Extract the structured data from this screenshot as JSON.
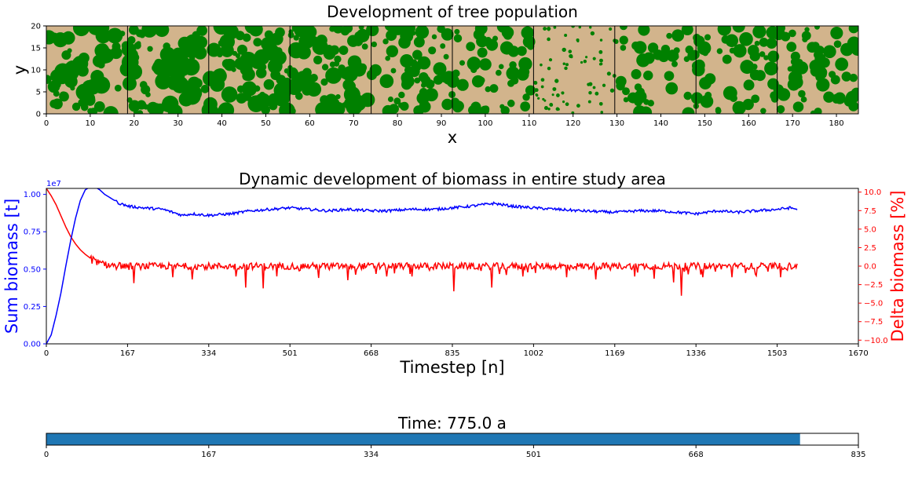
{
  "chart_data": [
    {
      "type": "scatter",
      "title": "Development of tree population",
      "xlabel": "x",
      "ylabel": "y",
      "xlim": [
        0,
        185
      ],
      "ylim": [
        0,
        20
      ],
      "xticks": [
        0,
        10,
        20,
        30,
        40,
        50,
        60,
        70,
        80,
        90,
        100,
        110,
        120,
        130,
        140,
        150,
        160,
        170,
        180
      ],
      "yticks": [
        0,
        5,
        10,
        15,
        20
      ],
      "background_color": "#d2b48c",
      "tree_color": "#008000",
      "separator_color": "#000000",
      "panel_separators_x": [
        18.5,
        37,
        55.5,
        74,
        92.5,
        111,
        129.5,
        148,
        166.5
      ],
      "panel_tree_coverage": [
        0.72,
        0.74,
        0.78,
        0.8,
        0.66,
        0.6,
        0.03,
        0.45,
        0.58,
        0.68
      ],
      "grid": false
    },
    {
      "type": "line",
      "title": "Dynamic development of biomass in entire study area",
      "xlabel": "Timestep [n]",
      "ylabel": "Sum biomass [t]",
      "ylabel_right": "Delta biomass [%]",
      "offset_text": "1e7",
      "xlim": [
        0,
        1670
      ],
      "ylim": [
        0,
        1.04
      ],
      "ylim_right": [
        -10.5,
        10.5
      ],
      "xticks": [
        0,
        167,
        334,
        501,
        668,
        835,
        1002,
        1169,
        1336,
        1503,
        1670
      ],
      "yticks": [
        0,
        0.25,
        0.5,
        0.75,
        1.0
      ],
      "ytick_labels": [
        "0.00",
        "0.25",
        "0.50",
        "0.75",
        "1.00"
      ],
      "yticks_right": [
        -10,
        -7.5,
        -5,
        -2.5,
        0,
        2.5,
        5,
        7.5,
        10
      ],
      "ytick_labels_right": [
        "−10.0",
        "−7.5",
        "−5.0",
        "−2.5",
        "0.0",
        "2.5",
        "5.0",
        "7.5",
        "10.0"
      ],
      "series": [
        {
          "axis": "left",
          "color": "#0000ff",
          "x": [
            0,
            10,
            20,
            30,
            40,
            50,
            60,
            70,
            80,
            90,
            100,
            110,
            120,
            135,
            150,
            170,
            200,
            240,
            280,
            300,
            334,
            380,
            420,
            460,
            501,
            540,
            580,
            620,
            668,
            700,
            750,
            800,
            835,
            870,
            920,
            960,
            1002,
            1050,
            1100,
            1169,
            1220,
            1260,
            1300,
            1336,
            1380,
            1420,
            1460,
            1503,
            1530,
            1545
          ],
          "y": [
            0.0,
            0.06,
            0.19,
            0.34,
            0.52,
            0.69,
            0.84,
            0.96,
            1.03,
            1.05,
            1.05,
            1.03,
            1.0,
            0.97,
            0.94,
            0.92,
            0.91,
            0.9,
            0.86,
            0.87,
            0.86,
            0.87,
            0.89,
            0.9,
            0.91,
            0.9,
            0.89,
            0.9,
            0.89,
            0.89,
            0.9,
            0.9,
            0.91,
            0.92,
            0.94,
            0.92,
            0.91,
            0.9,
            0.89,
            0.88,
            0.89,
            0.89,
            0.88,
            0.87,
            0.89,
            0.88,
            0.89,
            0.9,
            0.91,
            0.9
          ]
        },
        {
          "axis": "right",
          "color": "#ff0000",
          "x": [
            0,
            10,
            20,
            30,
            40,
            50,
            60,
            70,
            80,
            90,
            100,
            110,
            120,
            140,
            167,
            200,
            250,
            300,
            334,
            400,
            450,
            501,
            550,
            600,
            668,
            700,
            750,
            800,
            835,
            900,
            950,
            1002,
            1050,
            1100,
            1169,
            1200,
            1250,
            1300,
            1336,
            1380,
            1420,
            1460,
            1503,
            1545
          ],
          "y": [
            10.5,
            9.5,
            8.3,
            6.8,
            5.3,
            4.0,
            3.0,
            2.2,
            1.6,
            1.1,
            0.7,
            0.4,
            0.2,
            0.1,
            0.0,
            0.0,
            0.0,
            0.0,
            0.0,
            0.0,
            0.0,
            0.0,
            0.0,
            0.0,
            0.0,
            0.0,
            0.0,
            0.0,
            0.0,
            0.0,
            0.0,
            0.0,
            0.0,
            0.0,
            0.0,
            0.0,
            0.0,
            0.0,
            0.0,
            0.0,
            0.0,
            0.0,
            0.0,
            0.0
          ],
          "dips": [
            [
              180,
              -2.3
            ],
            [
              260,
              -1.5
            ],
            [
              300,
              -1.8
            ],
            [
              390,
              -1.4
            ],
            [
              410,
              -2.9
            ],
            [
              445,
              -3.0
            ],
            [
              560,
              -1.6
            ],
            [
              620,
              -1.9
            ],
            [
              700,
              -1.4
            ],
            [
              752,
              -1.4
            ],
            [
              838,
              -3.4
            ],
            [
              915,
              -2.9
            ],
            [
              980,
              -1.4
            ],
            [
              1070,
              -1.5
            ],
            [
              1130,
              -1.8
            ],
            [
              1210,
              -1.4
            ],
            [
              1250,
              -1.7
            ],
            [
              1290,
              -2.2
            ],
            [
              1305,
              -4.0
            ],
            [
              1350,
              -1.5
            ],
            [
              1410,
              -1.5
            ],
            [
              1460,
              -1.3
            ],
            [
              1510,
              -1.5
            ]
          ]
        }
      ],
      "grid": false
    },
    {
      "type": "bar",
      "title": "Time: 775.0 a",
      "xlim": [
        0,
        835
      ],
      "xticks": [
        0,
        167,
        334,
        501,
        668,
        835
      ],
      "values": [
        775
      ],
      "color": "#1f77b4"
    }
  ]
}
